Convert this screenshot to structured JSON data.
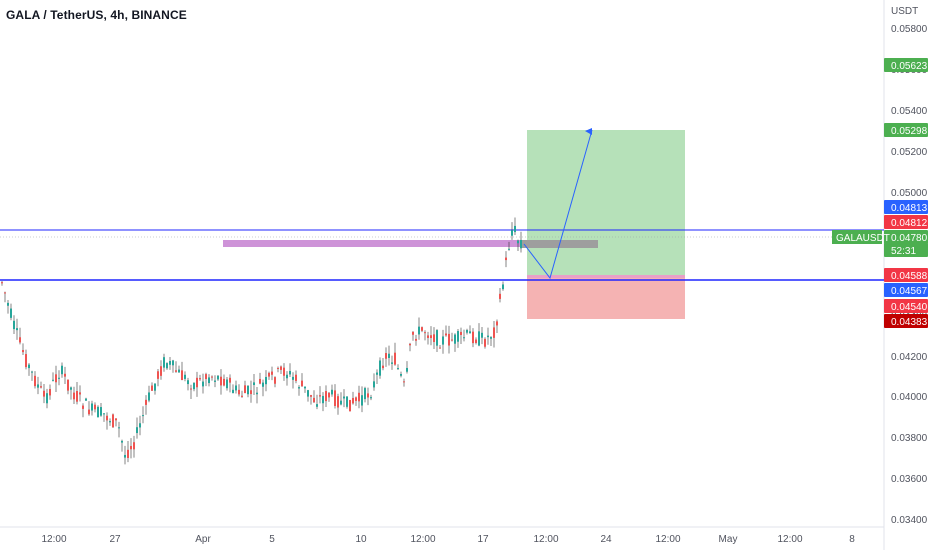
{
  "header": {
    "title": "GALA / TetherUS, 4h, BINANCE"
  },
  "price_axis": {
    "currency": "USDT",
    "ticks": [
      "0.05800",
      "0.05600",
      "0.05400",
      "0.05200",
      "0.05000",
      "0.04800",
      "0.04600",
      "0.04400",
      "0.04200",
      "0.04000",
      "0.03800",
      "0.03600",
      "0.03400"
    ]
  },
  "time_axis": {
    "labels": [
      "12:00",
      "27",
      "Apr",
      "5",
      "10",
      "12:00",
      "17",
      "12:00",
      "24",
      "12:00",
      "May",
      "12:00",
      "8"
    ]
  },
  "price_labels": [
    {
      "text": "0.05623",
      "color": "#4caf50"
    },
    {
      "text": "0.05298",
      "color": "#4caf50"
    },
    {
      "text": "0.04813",
      "color": "#2962ff"
    },
    {
      "text": "0.04812",
      "color": "#f23645"
    },
    {
      "text": "0.04780",
      "color": "#4caf50"
    },
    {
      "text": "52:31",
      "color": "#4caf50"
    },
    {
      "text": "0.04588",
      "color": "#f23645"
    },
    {
      "text": "0.04567",
      "color": "#2962ff"
    },
    {
      "text": "0.04540",
      "color": "#f23645"
    },
    {
      "text": "0.04383",
      "color": "#c00000"
    }
  ],
  "symbol_tag": {
    "text": "GALAUSDT",
    "color": "#4caf50"
  },
  "colors": {
    "up": "#26a69a",
    "down": "#ef5350",
    "line": "#1f25ff",
    "profit": "#b2dfb5",
    "loss": "#f5b3b3",
    "zone": "#ce93d8"
  }
}
